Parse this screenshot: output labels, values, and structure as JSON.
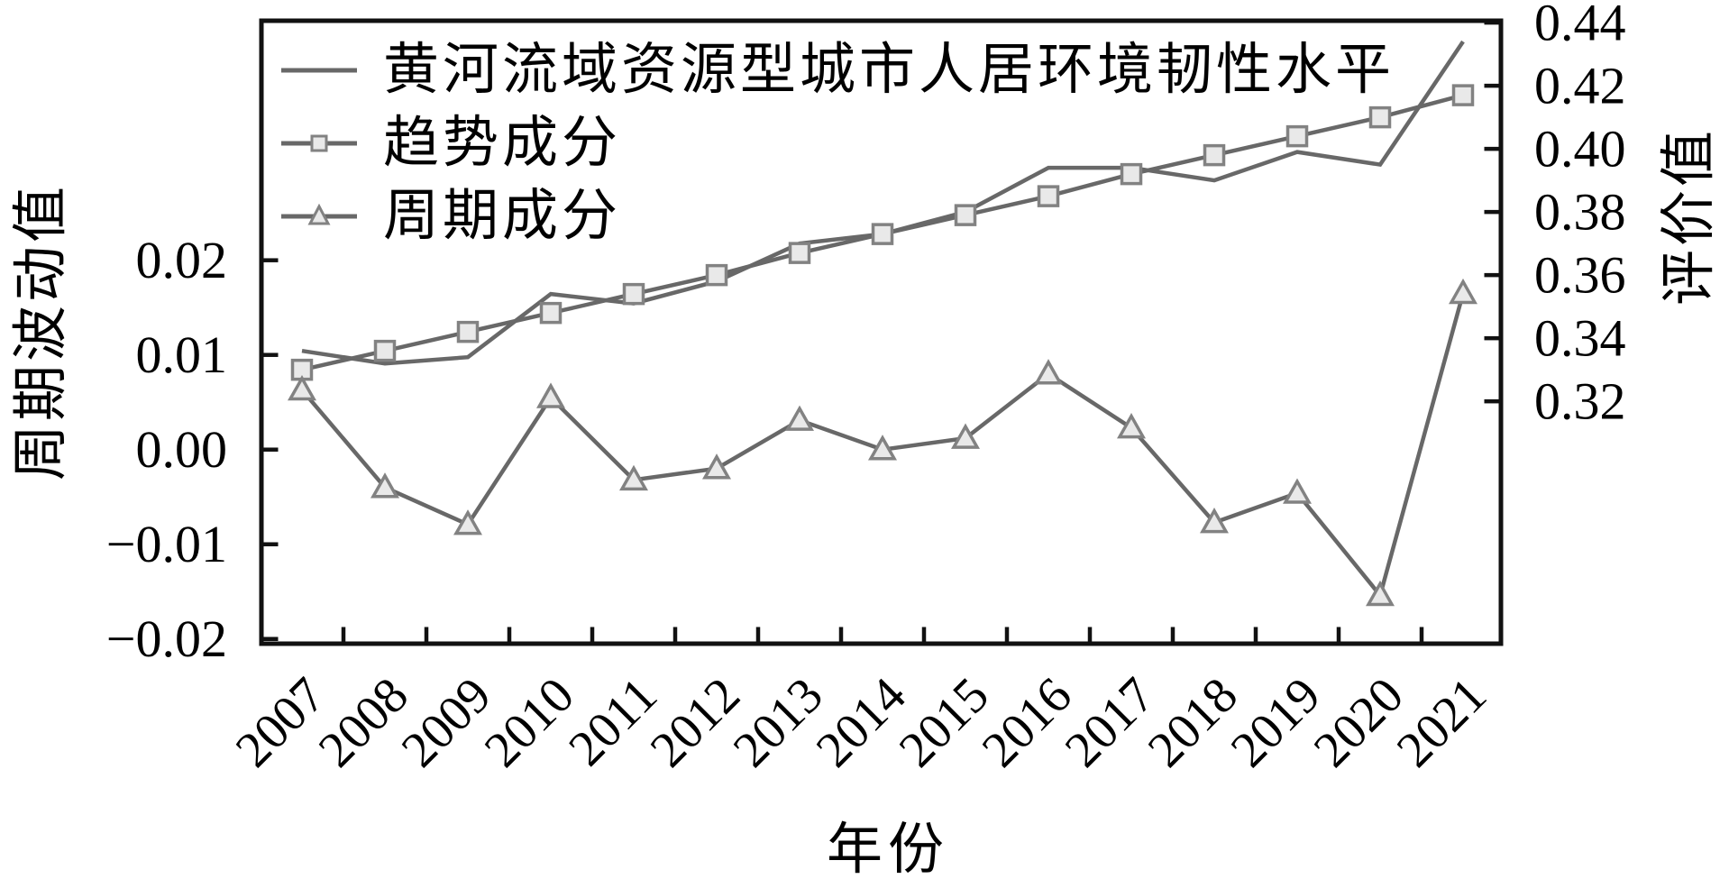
{
  "chart_data": {
    "type": "line",
    "x": [
      2007,
      2008,
      2009,
      2010,
      2011,
      2012,
      2013,
      2014,
      2015,
      2016,
      2017,
      2018,
      2019,
      2020,
      2021
    ],
    "x_tick_labels": [
      "2007",
      "2008",
      "2009",
      "2010",
      "2011",
      "2012",
      "2013",
      "2014",
      "2015",
      "2016",
      "2017",
      "2018",
      "2019",
      "2020",
      "2021"
    ],
    "xlabel": "年份",
    "series": [
      {
        "name": "黄河流域资源型城市人居环境韧性水平",
        "axis": "right",
        "marker": "none",
        "values": [
          0.336,
          0.332,
          0.334,
          0.354,
          0.351,
          0.358,
          0.37,
          0.373,
          0.38,
          0.394,
          0.394,
          0.39,
          0.399,
          0.395,
          0.434
        ]
      },
      {
        "name": "趋势成分",
        "axis": "right",
        "marker": "square",
        "values": [
          0.33,
          0.336,
          0.342,
          0.348,
          0.354,
          0.36,
          0.367,
          0.373,
          0.379,
          0.385,
          0.392,
          0.398,
          0.404,
          0.41,
          0.417
        ]
      },
      {
        "name": "周期成分",
        "axis": "left",
        "marker": "triangle",
        "values": [
          0.0063,
          -0.004,
          -0.0079,
          0.0055,
          -0.0032,
          -0.002,
          0.0031,
          0.0,
          0.0012,
          0.008,
          0.0023,
          -0.0077,
          -0.0046,
          -0.0154,
          0.0165
        ]
      }
    ],
    "left_axis": {
      "title": "周期波动值",
      "tick_values": [
        0.02,
        0.01,
        0.0,
        -0.01,
        -0.02
      ],
      "tick_labels": [
        "0.02",
        "0.01",
        "0.00",
        "−0.01",
        "−0.02"
      ],
      "range": [
        -0.0205,
        0.0453
      ]
    },
    "right_axis": {
      "title": "评价值",
      "tick_values": [
        0.44,
        0.42,
        0.4,
        0.38,
        0.36,
        0.34,
        0.32
      ],
      "tick_labels": [
        "0.44",
        "0.42",
        "0.40",
        "0.38",
        "0.36",
        "0.34",
        "0.32"
      ],
      "range": [
        0.2432,
        0.4406
      ]
    },
    "legend_position": "top-left-inside",
    "grid": false,
    "colors": {
      "line": "#686868",
      "marker_fill": "#e9e9e9",
      "marker_stroke": "#828282",
      "frame": "#111111",
      "text": "#000000",
      "background": "#ffffff"
    }
  }
}
